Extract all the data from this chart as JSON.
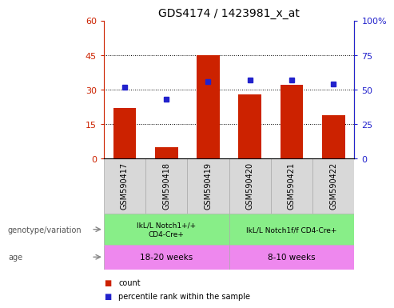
{
  "title": "GDS4174 / 1423981_x_at",
  "samples": [
    "GSM590417",
    "GSM590418",
    "GSM590419",
    "GSM590420",
    "GSM590421",
    "GSM590422"
  ],
  "counts": [
    22,
    5,
    45,
    28,
    32,
    19
  ],
  "percentile_ranks": [
    52,
    43,
    56,
    57,
    57,
    54
  ],
  "ylim_left": [
    0,
    60
  ],
  "ylim_right": [
    0,
    100
  ],
  "yticks_left": [
    0,
    15,
    30,
    45,
    60
  ],
  "ytick_labels_left": [
    "0",
    "15",
    "30",
    "45",
    "60"
  ],
  "yticks_right": [
    0,
    25,
    50,
    75,
    100
  ],
  "ytick_labels_right": [
    "0",
    "25",
    "50",
    "75",
    "100%"
  ],
  "bar_color": "#cc2200",
  "dot_color": "#2222cc",
  "genotype_labels": [
    "IkL/L Notch1+/+\nCD4-Cre+",
    "IkL/L Notch1f/f CD4-Cre+"
  ],
  "genotype_color": "#88ee88",
  "age_labels": [
    "18-20 weeks",
    "8-10 weeks"
  ],
  "age_color": "#ee88ee",
  "legend_count_label": "count",
  "legend_pct_label": "percentile rank within the sample",
  "left_label_geno": "genotype/variation",
  "left_label_age": "age",
  "tick_dotted_values": [
    15,
    30,
    45
  ],
  "gsm_row_color": "#d8d8d8",
  "gsm_border_color": "#aaaaaa"
}
